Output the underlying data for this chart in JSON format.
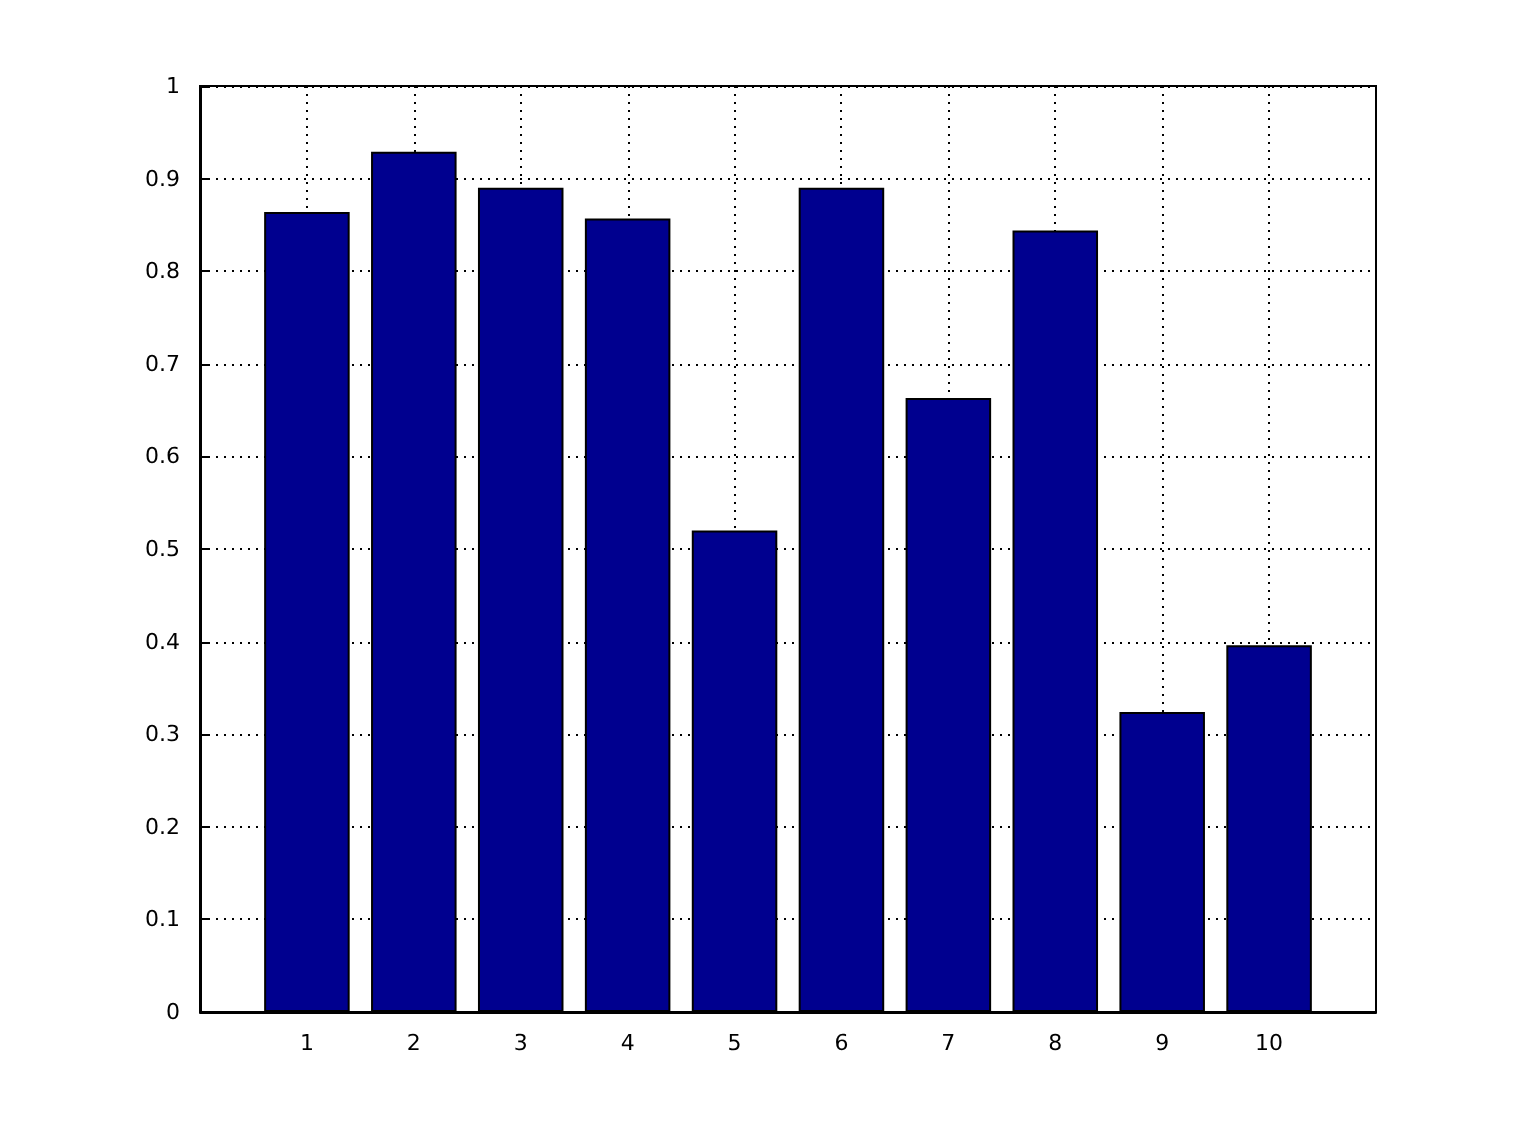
{
  "chart_data": {
    "type": "bar",
    "categories": [
      "1",
      "2",
      "3",
      "4",
      "5",
      "6",
      "7",
      "8",
      "9",
      "10"
    ],
    "values": [
      0.864,
      0.929,
      0.89,
      0.857,
      0.52,
      0.89,
      0.663,
      0.844,
      0.324,
      0.396
    ],
    "color": "#00008f",
    "ylim": [
      0,
      1
    ],
    "yticks": [
      0,
      0.1,
      0.2,
      0.3,
      0.4,
      0.5,
      0.6,
      0.7,
      0.8,
      0.9,
      1
    ],
    "grid": true
  }
}
